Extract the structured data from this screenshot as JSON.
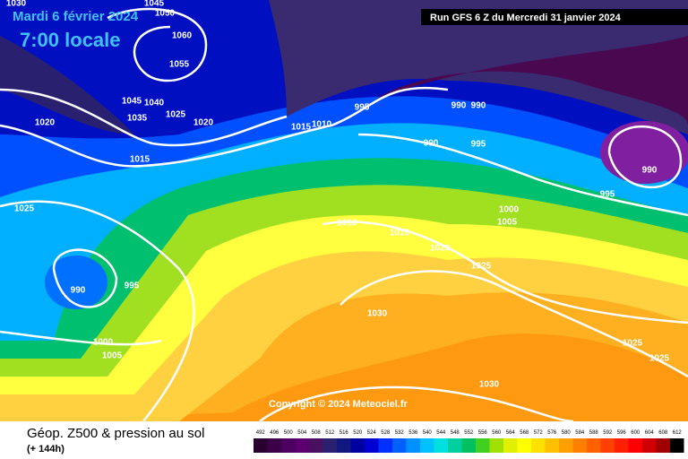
{
  "header": {
    "date": "Mardi 6 février 2024",
    "time": "7:00 locale",
    "run": "Run GFS 6 Z du Mercredi 31 janvier 2024"
  },
  "copyright": "Copyright © 2024 Meteociel.fr",
  "footer": {
    "title": "Géop. Z500 & pression au sol",
    "lead": "(+ 144h)"
  },
  "pressure_labels": [
    1030,
    1045,
    1050,
    1060,
    1055,
    1045,
    1040,
    1035,
    1025,
    1020,
    1020,
    1015,
    1010,
    1015,
    995,
    990,
    990,
    990,
    995,
    990,
    995,
    1025,
    1000,
    1005,
    1010,
    1015,
    1020,
    1025,
    990,
    995,
    1030,
    1000,
    1005,
    1025,
    1025,
    1030
  ],
  "legend": {
    "values": [
      492,
      496,
      500,
      504,
      508,
      512,
      516,
      520,
      524,
      528,
      532,
      536,
      540,
      544,
      548,
      552,
      556,
      560,
      564,
      568,
      572,
      576,
      580,
      584,
      588,
      592,
      596,
      600,
      604,
      608,
      612
    ],
    "colors": [
      "#2a0030",
      "#3a0048",
      "#4c0060",
      "#5c0070",
      "#4a1060",
      "#2a2070",
      "#101880",
      "#0000a0",
      "#0000d0",
      "#0030ff",
      "#0060ff",
      "#0090ff",
      "#00c0ff",
      "#00e0e0",
      "#00d0a0",
      "#00c060",
      "#40d020",
      "#a0e000",
      "#e0f000",
      "#ffff00",
      "#ffe000",
      "#ffc000",
      "#ffa000",
      "#ff8000",
      "#ff6000",
      "#ff4000",
      "#ff2000",
      "#ff0000",
      "#d00000",
      "#a00000",
      "#000000"
    ]
  }
}
